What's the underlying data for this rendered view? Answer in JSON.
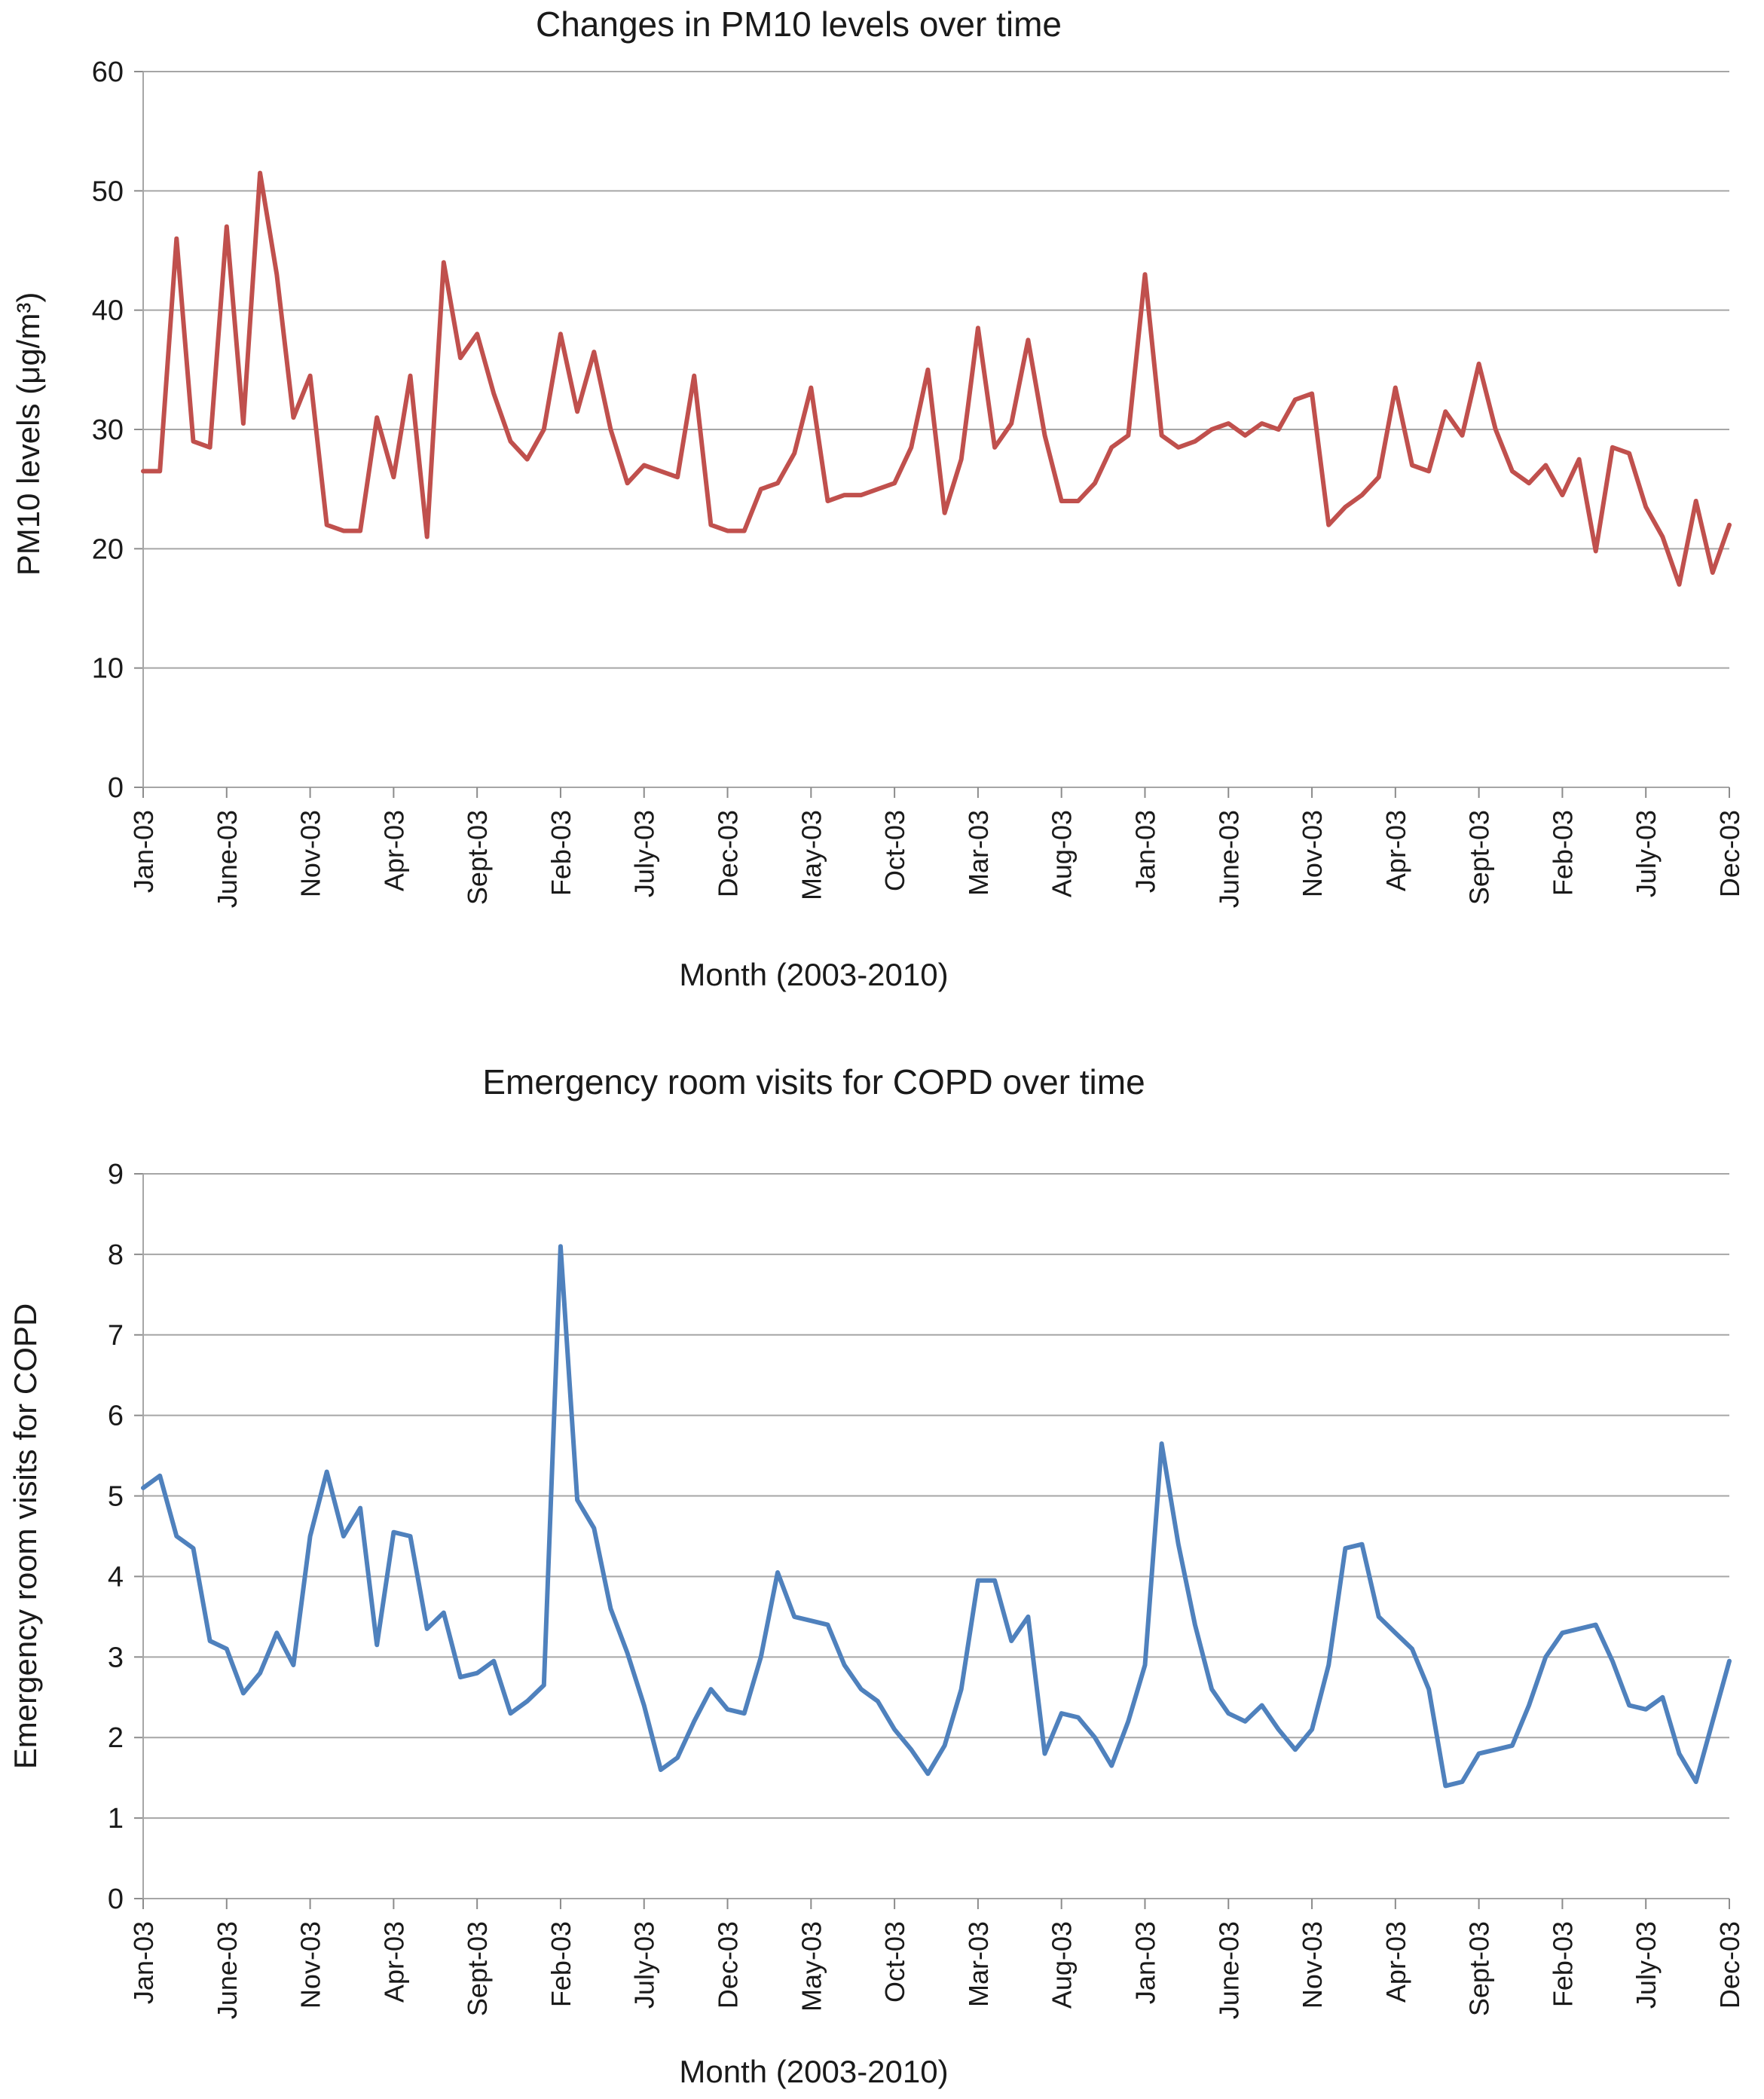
{
  "chart_data": [
    {
      "type": "line",
      "title": "Changes in PM10 levels over time",
      "xlabel": "Month (2003-2010)",
      "ylabel": "PM10 levels (μg/m³)",
      "color": "#C0504D",
      "grid": "horizontal",
      "legend": "none",
      "ylim": [
        0,
        60
      ],
      "y_tick_labels": [
        0,
        10,
        20,
        30,
        40,
        50,
        60
      ],
      "tick_every": 5,
      "x_tick_labels": [
        "Jan-03",
        "June-03",
        "Nov-03",
        "Apr-03",
        "Sept-03",
        "Feb-03",
        "July-03",
        "Dec-03",
        "May-03",
        "Oct-03",
        "Mar-03",
        "Aug-03",
        "Jan-03",
        "June-03",
        "Nov-03",
        "Apr-03",
        "Sept-03",
        "Feb-03",
        "July-03",
        "Dec-03"
      ],
      "values": [
        26.5,
        26.5,
        46,
        29,
        28.5,
        47,
        30.5,
        51.5,
        43,
        31,
        34.5,
        22,
        21.5,
        21.5,
        31,
        26,
        34.5,
        21,
        44,
        36,
        38,
        33,
        29,
        27.5,
        30,
        38,
        31.5,
        36.5,
        30,
        25.5,
        27,
        26.5,
        26,
        34.5,
        22,
        21.5,
        21.5,
        25,
        25.5,
        28,
        33.5,
        24,
        24.5,
        24.5,
        25,
        25.5,
        28.5,
        35,
        23,
        27.5,
        38.5,
        28.5,
        30.5,
        37.5,
        29.5,
        24,
        24,
        25.5,
        28.5,
        29.5,
        43,
        29.5,
        28.5,
        29,
        30,
        30.5,
        29.5,
        30.5,
        30,
        32.5,
        33,
        22,
        23.5,
        24.5,
        26,
        33.5,
        27,
        26.5,
        31.5,
        29.5,
        35.5,
        30,
        26.5,
        25.5,
        27,
        24.5,
        27.5,
        19.8,
        28.5,
        28,
        23.5,
        21,
        17,
        24,
        18,
        22
      ]
    },
    {
      "type": "line",
      "title": "Emergency room visits for COPD over time",
      "xlabel": "Month (2003-2010)",
      "ylabel": "Emergency room visits for COPD",
      "color": "#4F81BD",
      "grid": "horizontal",
      "legend": "none",
      "ylim": [
        0,
        9
      ],
      "y_tick_labels": [
        0,
        1,
        2,
        3,
        4,
        5,
        6,
        7,
        8,
        9
      ],
      "tick_every": 5,
      "x_tick_labels": [
        "Jan-03",
        "June-03",
        "Nov-03",
        "Apr-03",
        "Sept-03",
        "Feb-03",
        "July-03",
        "Dec-03",
        "May-03",
        "Oct-03",
        "Mar-03",
        "Aug-03",
        "Jan-03",
        "June-03",
        "Nov-03",
        "Apr-03",
        "Sept-03",
        "Feb-03",
        "July-03",
        "Dec-03"
      ],
      "values": [
        5.1,
        5.25,
        4.5,
        4.35,
        3.2,
        3.1,
        2.55,
        2.8,
        3.3,
        2.9,
        4.5,
        5.3,
        4.5,
        4.85,
        3.15,
        4.55,
        4.5,
        3.35,
        3.55,
        2.75,
        2.8,
        2.95,
        2.3,
        2.45,
        2.65,
        8.1,
        4.95,
        4.6,
        3.6,
        3.05,
        2.4,
        1.6,
        1.75,
        2.2,
        2.6,
        2.35,
        2.3,
        3.0,
        4.05,
        3.5,
        3.45,
        3.4,
        2.9,
        2.6,
        2.45,
        2.1,
        1.85,
        1.55,
        1.9,
        2.6,
        3.95,
        3.95,
        3.2,
        3.5,
        1.8,
        2.3,
        2.25,
        2.0,
        1.65,
        2.2,
        2.9,
        5.65,
        4.4,
        3.4,
        2.6,
        2.3,
        2.2,
        2.4,
        2.1,
        1.85,
        2.1,
        2.9,
        4.35,
        4.4,
        3.5,
        3.3,
        3.1,
        2.6,
        1.4,
        1.45,
        1.8,
        1.85,
        1.9,
        2.4,
        3.0,
        3.3,
        3.35,
        3.4,
        2.95,
        2.4,
        2.35,
        2.5,
        1.8,
        1.45,
        2.2,
        2.95
      ]
    }
  ]
}
